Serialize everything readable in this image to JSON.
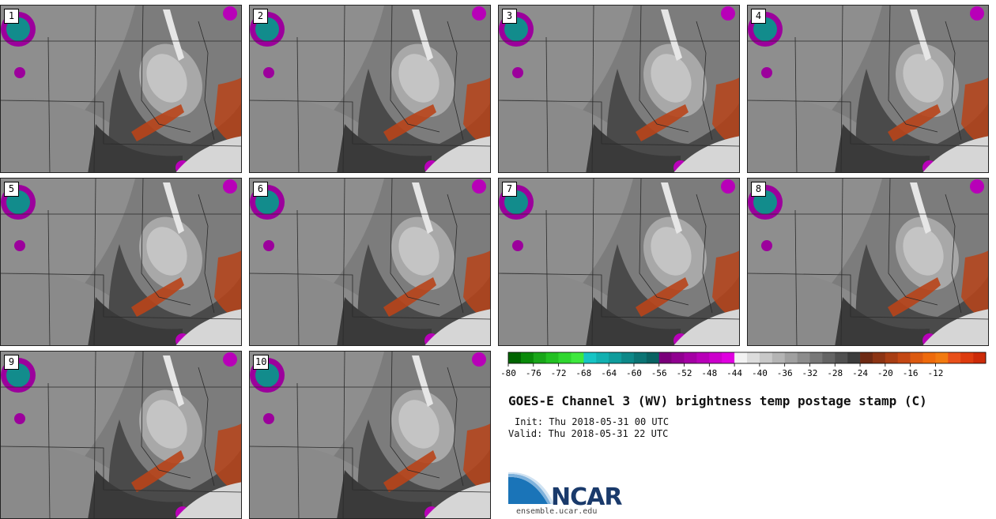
{
  "stamps": [
    {
      "label": "1"
    },
    {
      "label": "2"
    },
    {
      "label": "3"
    },
    {
      "label": "4"
    },
    {
      "label": "5"
    },
    {
      "label": "6"
    },
    {
      "label": "7"
    },
    {
      "label": "8"
    },
    {
      "label": "9"
    },
    {
      "label": "10"
    }
  ],
  "colorbar": {
    "ticks": [
      "-80",
      "-76",
      "-72",
      "-68",
      "-64",
      "-60",
      "-56",
      "-52",
      "-48",
      "-44",
      "-40",
      "-36",
      "-32",
      "-28",
      "-24",
      "-20",
      "-16",
      "-12"
    ],
    "colors": [
      "#006400",
      "#0a8a0a",
      "#19a619",
      "#22c022",
      "#2fd62f",
      "#3ee83e",
      "#16c4c4",
      "#12b0b0",
      "#0f9c9c",
      "#0d8888",
      "#0b7474",
      "#096262",
      "#7a007a",
      "#900090",
      "#a400a4",
      "#b800b8",
      "#cc00cc",
      "#e000e0",
      "#f2f2f2",
      "#dcdcdc",
      "#c8c8c8",
      "#b4b4b4",
      "#a0a0a0",
      "#8c8c8c",
      "#787878",
      "#646464",
      "#505050",
      "#3c3c3c",
      "#6e2a14",
      "#8c3414",
      "#a83e14",
      "#c44814",
      "#dc5a10",
      "#ee6a0c",
      "#f27a10",
      "#e8501a",
      "#dd3b0e",
      "#cc2a08"
    ]
  },
  "title": "GOES-E Channel 3 (WV) brightness temp postage stamp (C)",
  "init": "Init: Thu 2018-05-31 00 UTC",
  "valid": "Valid: Thu 2018-05-31 22 UTC",
  "logo": {
    "text": "NCAR",
    "url": "ensemble.ucar.edu"
  }
}
